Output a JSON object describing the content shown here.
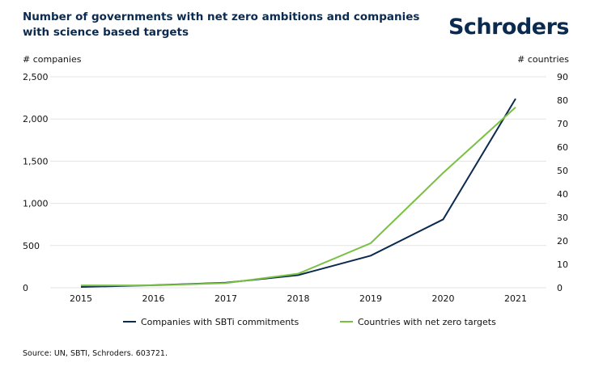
{
  "header": {
    "title": "Number of governments with net zero ambitions and companies with science based targets",
    "logo": "Schroders"
  },
  "source": "Source: UN, SBTI, Schroders. 603721.",
  "chart_data": {
    "type": "line",
    "title": "Number of governments with net zero ambitions and companies with science based targets",
    "x": [
      2015,
      2016,
      2017,
      2018,
      2019,
      2020,
      2021
    ],
    "ylabel_left": "# companies",
    "ylabel_right": "# countries",
    "ylim_left": [
      0,
      2500
    ],
    "ylim_right": [
      0,
      90
    ],
    "yticks_left": [
      "0",
      "500",
      "1,000",
      "1,500",
      "2,000",
      "2,500"
    ],
    "yticks_right": [
      "0",
      "10",
      "20",
      "30",
      "40",
      "50",
      "60",
      "70",
      "80",
      "90"
    ],
    "grid": true,
    "legend": "bottom",
    "series": [
      {
        "name": "Companies with SBTi commitments",
        "axis": "left",
        "color": "#0b2a4f",
        "values": [
          10,
          30,
          60,
          150,
          380,
          810,
          2240
        ]
      },
      {
        "name": "Countries with net zero targets",
        "axis": "right",
        "color": "#7ac143",
        "values": [
          1,
          1,
          2,
          6,
          19,
          49,
          77
        ]
      }
    ]
  }
}
